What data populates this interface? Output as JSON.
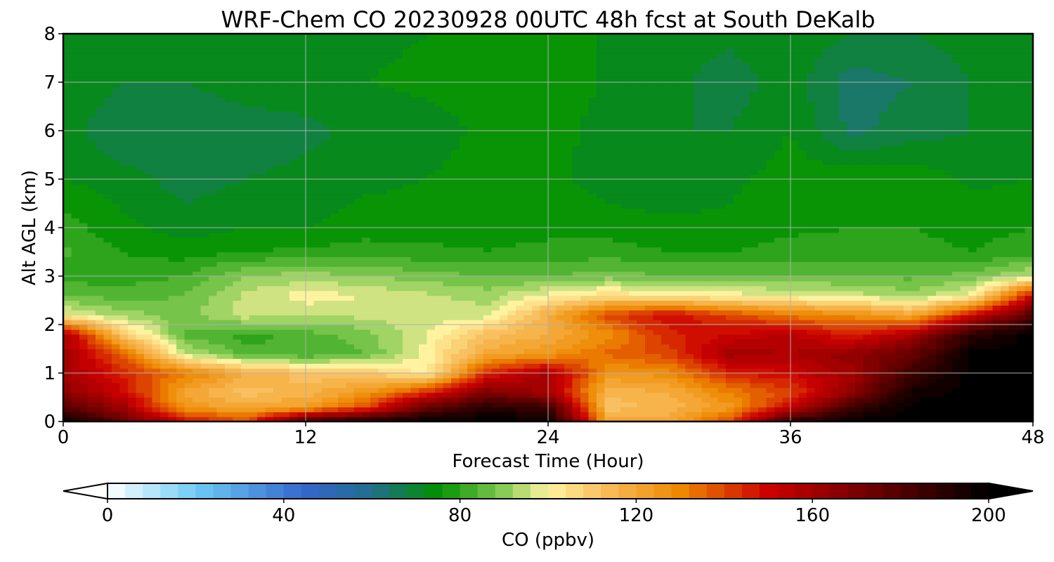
{
  "chart_data": {
    "type": "heatmap",
    "title": "WRF-Chem CO  20230928 00UTC 48h fcst at South DeKalb",
    "xlabel": "Forecast Time (Hour)",
    "ylabel": "Alt AGL (km)",
    "xlim": [
      0,
      48
    ],
    "ylim": [
      0,
      8
    ],
    "xticks": [
      "0",
      "12",
      "24",
      "36",
      "48"
    ],
    "yticks": [
      "0",
      "1",
      "2",
      "3",
      "4",
      "5",
      "6",
      "7",
      "8"
    ],
    "grid": true,
    "x": [
      0,
      3,
      6,
      9,
      12,
      15,
      18,
      21,
      24,
      27,
      30,
      33,
      36,
      39,
      42,
      45,
      48
    ],
    "y": [
      0,
      0.3,
      0.6,
      1.0,
      1.4,
      1.8,
      2.2,
      2.6,
      3.0,
      3.5,
      4.0,
      5.0,
      6.0,
      7.0,
      8.0
    ],
    "z": [
      [
        200,
        175,
        150,
        140,
        185,
        195,
        200,
        200,
        200,
        120,
        120,
        140,
        190,
        200,
        200,
        200,
        200
      ],
      [
        180,
        160,
        125,
        120,
        122,
        140,
        175,
        190,
        185,
        112,
        115,
        125,
        150,
        185,
        200,
        200,
        200
      ],
      [
        165,
        150,
        120,
        112,
        116,
        125,
        145,
        170,
        160,
        115,
        118,
        130,
        140,
        165,
        195,
        200,
        200
      ],
      [
        160,
        145,
        132,
        118,
        112,
        110,
        100,
        145,
        160,
        125,
        128,
        145,
        150,
        160,
        185,
        200,
        200
      ],
      [
        160,
        135,
        95,
        84,
        82,
        86,
        100,
        120,
        125,
        135,
        140,
        160,
        158,
        165,
        175,
        200,
        200
      ],
      [
        160,
        110,
        85,
        80,
        84,
        88,
        98,
        112,
        118,
        128,
        145,
        150,
        155,
        145,
        158,
        190,
        200
      ],
      [
        100,
        92,
        88,
        96,
        95,
        95,
        96,
        96,
        118,
        140,
        150,
        140,
        132,
        128,
        120,
        150,
        180
      ],
      [
        86,
        84,
        86,
        95,
        100,
        98,
        95,
        92,
        100,
        105,
        102,
        100,
        98,
        96,
        92,
        100,
        150
      ],
      [
        80,
        80,
        82,
        90,
        92,
        90,
        88,
        86,
        86,
        88,
        86,
        86,
        86,
        86,
        85,
        88,
        95
      ],
      [
        83,
        78,
        76,
        78,
        79,
        80,
        79,
        78,
        79,
        80,
        78,
        78,
        80,
        80,
        79,
        78,
        80
      ],
      [
        80,
        75,
        72,
        74,
        74,
        76,
        76,
        77,
        77,
        76,
        75,
        75,
        77,
        78,
        78,
        77,
        78
      ],
      [
        74,
        72,
        68,
        70,
        71,
        73,
        74,
        76,
        75,
        72,
        71,
        73,
        76,
        77,
        77,
        73,
        74
      ],
      [
        72,
        66,
        66,
        68,
        69,
        71,
        72,
        75,
        76,
        72,
        70,
        70,
        74,
        65,
        68,
        70,
        72
      ],
      [
        74,
        70,
        70,
        72,
        72,
        74,
        75,
        76,
        78,
        73,
        71,
        68,
        72,
        64,
        66,
        70,
        72
      ],
      [
        72,
        70,
        72,
        71,
        72,
        73,
        74,
        76,
        77,
        73,
        72,
        71,
        73,
        70,
        70,
        72,
        73
      ]
    ],
    "colorbar": {
      "label": "CO  (ppbv)",
      "min": 0,
      "max": 200,
      "ticks": [
        "0",
        "40",
        "80",
        "120",
        "160",
        "200"
      ],
      "extend": "both",
      "stops": [
        {
          "v": 0,
          "c": "#ffffff"
        },
        {
          "v": 20,
          "c": "#6ecbf5"
        },
        {
          "v": 45,
          "c": "#3366cc"
        },
        {
          "v": 60,
          "c": "#226f8c"
        },
        {
          "v": 75,
          "c": "#009000"
        },
        {
          "v": 90,
          "c": "#88cc55"
        },
        {
          "v": 100,
          "c": "#fff3a0"
        },
        {
          "v": 112,
          "c": "#f8c060"
        },
        {
          "v": 130,
          "c": "#ee8800"
        },
        {
          "v": 150,
          "c": "#cc0000"
        },
        {
          "v": 170,
          "c": "#7a0000"
        },
        {
          "v": 200,
          "c": "#000000"
        }
      ]
    }
  }
}
